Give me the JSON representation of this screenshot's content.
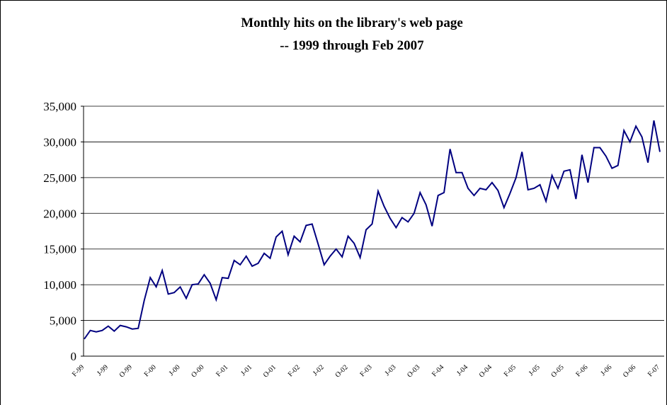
{
  "chart_data": {
    "type": "line",
    "title": "Monthly hits on the library's web page",
    "subtitle": "-- 1999 through Feb 2007",
    "categories": [
      "F-99",
      null,
      null,
      null,
      "J-99",
      null,
      null,
      null,
      "O-99",
      null,
      null,
      null,
      "F-00",
      null,
      null,
      null,
      "J-00",
      null,
      null,
      null,
      "O-00",
      null,
      null,
      null,
      "F-01",
      null,
      null,
      null,
      "J-01",
      null,
      null,
      null,
      "O-01",
      null,
      null,
      null,
      "F-02",
      null,
      null,
      null,
      "J-02",
      null,
      null,
      null,
      "O-02",
      null,
      null,
      null,
      "F-03",
      null,
      null,
      null,
      "J-03",
      null,
      null,
      null,
      "O-03",
      null,
      null,
      null,
      "F-04",
      null,
      null,
      null,
      "J-04",
      null,
      null,
      null,
      "O-04",
      null,
      null,
      null,
      "F-05",
      null,
      null,
      null,
      "J-05",
      null,
      null,
      null,
      "O-05",
      null,
      null,
      null,
      "F-06",
      null,
      null,
      null,
      "J-06",
      null,
      null,
      null,
      "O-06",
      null,
      null,
      null,
      "F-07"
    ],
    "values": [
      2400,
      3600,
      3400,
      3600,
      4200,
      3500,
      4300,
      4100,
      3800,
      3900,
      7800,
      11000,
      9700,
      12000,
      8700,
      8900,
      9700,
      8100,
      10000,
      10100,
      11400,
      10200,
      7900,
      11000,
      10900,
      13400,
      12800,
      14000,
      12600,
      13000,
      14400,
      13700,
      16700,
      17500,
      14200,
      16800,
      16000,
      18300,
      18500,
      15700,
      12800,
      14000,
      15000,
      13900,
      16800,
      15800,
      13800,
      17700,
      18500,
      23100,
      21000,
      19300,
      18000,
      19400,
      18800,
      20000,
      22900,
      21200,
      18200,
      22500,
      22900,
      29000,
      25700,
      25700,
      23500,
      22500,
      23500,
      23300,
      24300,
      23200,
      20800,
      22800,
      25000,
      28600,
      23300,
      23500,
      24000,
      21700,
      25300,
      23500,
      25900,
      26100,
      22000,
      28200,
      24300,
      29200,
      29200,
      28000,
      26300,
      26700,
      31600,
      30000,
      32200,
      30700,
      27100,
      33000,
      28600
    ],
    "color": "#000080",
    "ylim": [
      0,
      35000
    ],
    "yticks": [
      0,
      {
        "value": 5000,
        "label": "5,000"
      },
      {
        "value": 10000,
        "label": "10,000"
      },
      {
        "value": 15000,
        "label": "15,000"
      },
      {
        "value": 20000,
        "label": "20,000"
      },
      {
        "value": 25000,
        "label": "25,000"
      },
      {
        "value": 30000,
        "label": "30,000"
      },
      {
        "value": 35000,
        "label": "35,000"
      }
    ],
    "grid": true
  }
}
